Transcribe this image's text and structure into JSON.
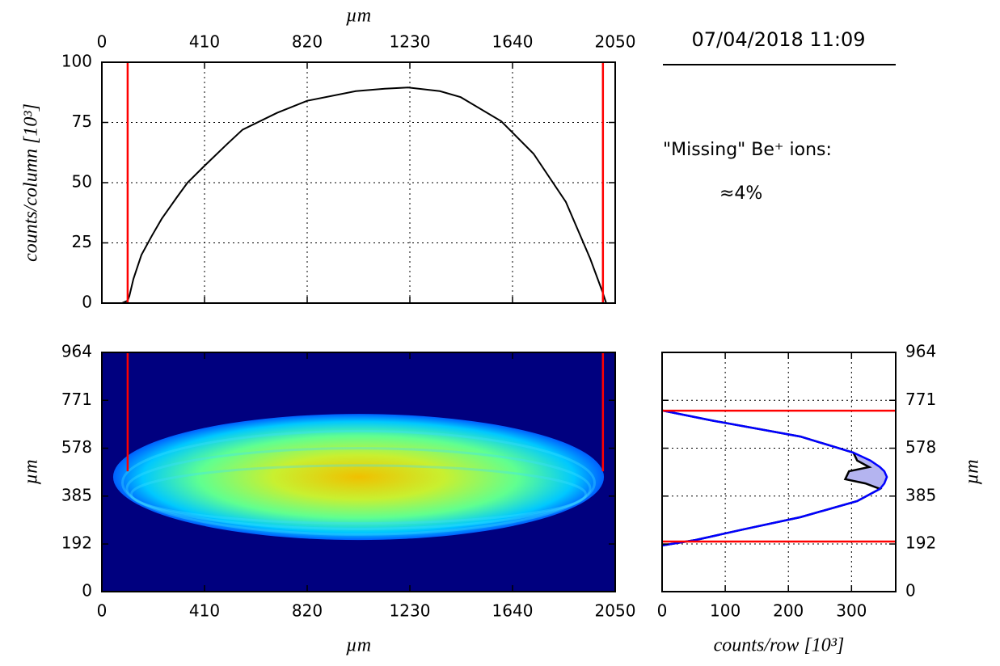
{
  "info": {
    "timestamp": "07/04/2018 11:09",
    "label": "\"Missing\" Be⁺ ions:",
    "value_text": "≈4%"
  },
  "chart_data": [
    {
      "type": "line",
      "xlabel": "µm",
      "ylabel": "counts/column [10³]",
      "x": [
        0,
        80,
        103,
        110,
        126,
        158,
        200,
        239,
        300,
        342,
        410,
        500,
        562,
        700,
        820,
        1014,
        1130,
        1223,
        1350,
        1433,
        1595,
        1724,
        1853,
        1950,
        1998,
        2014,
        2050
      ],
      "series": [
        {
          "color": "#000000",
          "values": [
            0,
            0,
            1,
            3,
            10,
            20,
            28,
            35,
            44,
            50,
            57,
            66,
            72,
            79,
            84,
            88,
            89,
            89.5,
            88,
            85.5,
            75.5,
            62,
            42,
            18.5,
            5,
            0,
            0
          ]
        }
      ],
      "xlim": [
        0,
        2050
      ],
      "ylim": [
        0,
        100
      ],
      "xticks": [
        0,
        410,
        820,
        1230,
        1640,
        2050
      ],
      "yticks": [
        0,
        25,
        50,
        75,
        100
      ],
      "grid": true,
      "xaxis_position": "top",
      "vlines": {
        "color": "#ff0000",
        "x": [
          103,
          2001
        ]
      }
    },
    {
      "type": "image",
      "xlabel": "µm",
      "ylabel": "µm",
      "xlim": [
        0,
        2050
      ],
      "ylim": [
        0,
        964
      ],
      "xticks": [
        0,
        410,
        820,
        1230,
        1640,
        2050
      ],
      "yticks": [
        0,
        192,
        385,
        578,
        771,
        964
      ],
      "background": "#00007f",
      "ellipse": {
        "cx": 1025,
        "cy": 462,
        "rx": 980,
        "ry": 254
      },
      "vlines": {
        "color": "#ff0000",
        "x": [
          103,
          2001
        ],
        "y": [
          485,
          964
        ]
      }
    },
    {
      "type": "profile",
      "xlabel": "counts/row [10³]",
      "ylabel": "µm",
      "xlim": [
        0,
        370
      ],
      "ylim": [
        0,
        964
      ],
      "xticks": [
        0,
        100,
        200,
        300
      ],
      "yticks": [
        0,
        192,
        385,
        578,
        771,
        964
      ],
      "grid": true,
      "yaxis_position": "right",
      "fill_color": "#b4b4f0",
      "series": [
        {
          "color": "#000000",
          "y": [
            730,
            690,
            625,
            560,
            528,
            502,
            485,
            453,
            436,
            414,
            365,
            300,
            251,
            208,
            186
          ],
          "values": [
            0,
            78,
            219,
            303,
            309,
            328,
            296,
            290,
            322,
            345,
            309,
            219,
            129,
            53,
            0
          ]
        },
        {
          "color": "#0000ff",
          "y": [
            730,
            690,
            625,
            560,
            528,
            502,
            485,
            462,
            436,
            414,
            365,
            300,
            251,
            208,
            186
          ],
          "values": [
            0,
            78,
            219,
            303,
            330,
            345,
            352,
            356,
            352,
            345,
            309,
            219,
            129,
            53,
            0
          ]
        }
      ],
      "hlines": {
        "color": "#ff0000",
        "y": [
          729,
          202
        ]
      }
    }
  ]
}
